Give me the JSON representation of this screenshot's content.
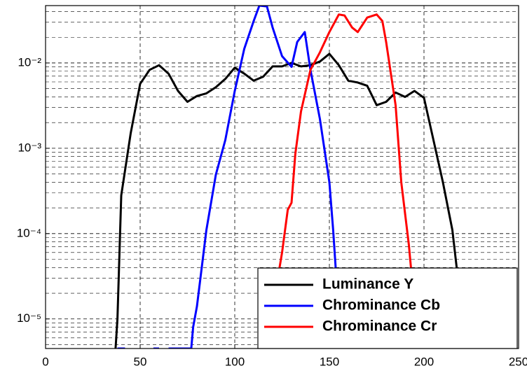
{
  "chart_data": {
    "type": "line",
    "yscale": "log",
    "grid": true,
    "legend": "lower right",
    "xlim": [
      0,
      250
    ],
    "xticks": [
      0,
      50,
      100,
      150,
      200,
      250
    ],
    "ylim": [
      4.5e-06,
      0.047
    ],
    "yticks": [
      {
        "value": 1e-05,
        "label": "10⁻⁵"
      },
      {
        "value": 0.0001,
        "label": "10⁻⁴"
      },
      {
        "value": 0.001,
        "label": "10⁻³"
      },
      {
        "value": 0.01,
        "label": "10⁻²"
      }
    ],
    "series": [
      {
        "name": "Luminance Y",
        "color": "#000000",
        "x": [
          37,
          38,
          40,
          45,
          50,
          55,
          60,
          65,
          70,
          75,
          80,
          85,
          90,
          95,
          100,
          105,
          110,
          115,
          120,
          125,
          130,
          135,
          140,
          145,
          150,
          155,
          160,
          165,
          170,
          175,
          180,
          185,
          190,
          195,
          200,
          205,
          210,
          215,
          218,
          220
        ],
        "values": [
          4.5e-06,
          1e-05,
          0.00028,
          0.0015,
          0.0057,
          0.0083,
          0.0094,
          0.0075,
          0.0047,
          0.0035,
          0.0041,
          0.0044,
          0.0052,
          0.0065,
          0.0088,
          0.0075,
          0.0062,
          0.0069,
          0.0091,
          0.0091,
          0.01,
          0.0091,
          0.0094,
          0.0104,
          0.0128,
          0.0094,
          0.0062,
          0.0059,
          0.0054,
          0.0032,
          0.0035,
          0.0045,
          0.004,
          0.0047,
          0.0039,
          0.00125,
          0.0004,
          0.00011,
          2.9e-05,
          4.5e-06
        ]
      },
      {
        "name": "Chrominance Cb",
        "color": "#0000ff",
        "x": [
          38,
          42,
          45,
          57,
          60,
          62,
          65,
          70,
          75,
          77,
          78,
          80,
          85,
          90,
          95,
          100,
          105,
          110,
          113,
          117,
          120,
          125,
          130,
          133,
          137,
          140,
          145,
          150,
          152,
          155,
          157
        ],
        "values": [
          4.5e-06,
          4.5e-06,
          null,
          4.5e-06,
          4.5e-06,
          null,
          4.5e-06,
          4.5e-06,
          4.5e-06,
          4.5e-06,
          8e-06,
          1.4e-05,
          0.00011,
          0.00049,
          0.00125,
          0.0047,
          0.0146,
          0.031,
          0.047,
          0.046,
          0.026,
          0.012,
          0.009,
          0.0176,
          0.023,
          0.0083,
          0.0022,
          0.0004,
          0.00011,
          1.1e-05,
          4.5e-06
        ]
      },
      {
        "name": "Chrominance Cr",
        "color": "#ff0000",
        "x": [
          120,
          122,
          125,
          128,
          130,
          132,
          135,
          140,
          145,
          150,
          155,
          158,
          162,
          165,
          170,
          175,
          178,
          180,
          185,
          188,
          192,
          195,
          196
        ],
        "values": [
          4.5e-06,
          2.4e-05,
          6e-05,
          0.00019,
          0.00023,
          0.00086,
          0.0027,
          0.0083,
          0.0133,
          0.023,
          0.037,
          0.036,
          0.026,
          0.023,
          0.034,
          0.037,
          0.031,
          0.0176,
          0.0032,
          0.0004,
          7.4e-05,
          1.4e-05,
          4.5e-06
        ]
      }
    ]
  }
}
